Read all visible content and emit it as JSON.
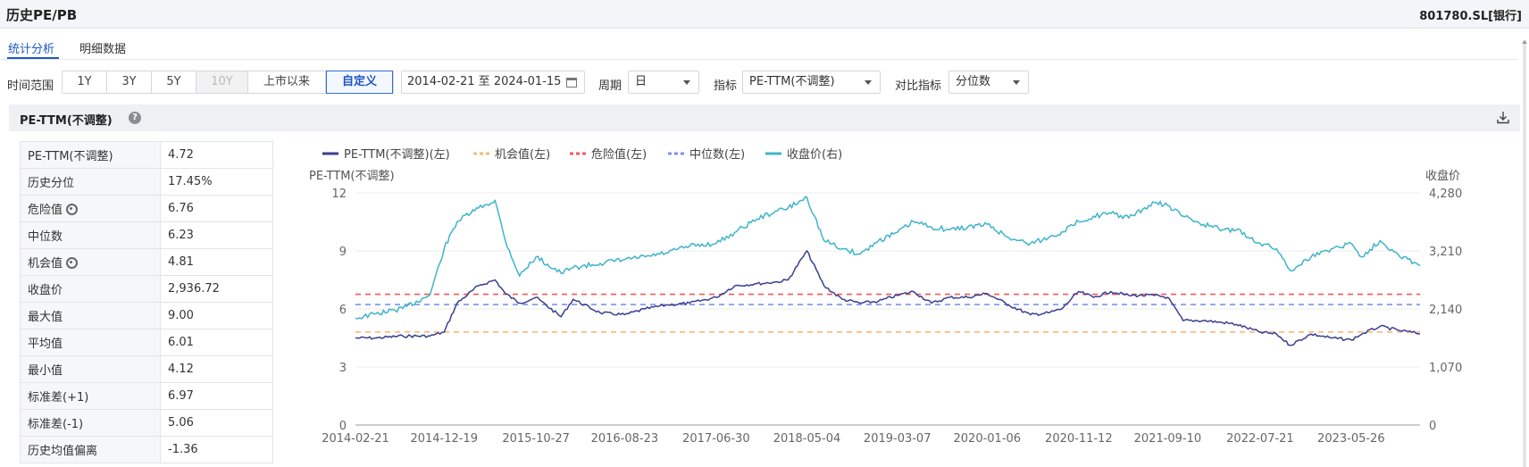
{
  "header": {
    "title": "历史PE/PB",
    "code": "801780.SL[银行]"
  },
  "tabs": [
    {
      "label": "统计分析",
      "active": true
    },
    {
      "label": "明细数据",
      "active": false
    }
  ],
  "filters": {
    "range_label": "时间范围",
    "range_buttons": [
      {
        "label": "1Y",
        "state": "normal"
      },
      {
        "label": "3Y",
        "state": "normal"
      },
      {
        "label": "5Y",
        "state": "normal"
      },
      {
        "label": "10Y",
        "state": "disabled"
      },
      {
        "label": "上市以来",
        "state": "normal"
      },
      {
        "label": "自定义",
        "state": "active"
      }
    ],
    "date_range": "2014-02-21 至 2024-01-15",
    "period_label": "周期",
    "period_value": "日",
    "indicator_label": "指标",
    "indicator_value": "PE-TTM(不调整)",
    "compare_label": "对比指标",
    "compare_value": "分位数"
  },
  "panel": {
    "title": "PE-TTM(不调整)"
  },
  "stats": [
    {
      "label": "PE-TTM(不调整)",
      "value": "4.72",
      "gear": false
    },
    {
      "label": "历史分位",
      "value": "17.45%",
      "gear": false
    },
    {
      "label": "危险值",
      "value": "6.76",
      "gear": true
    },
    {
      "label": "中位数",
      "value": "6.23",
      "gear": false
    },
    {
      "label": "机会值",
      "value": "4.81",
      "gear": true
    },
    {
      "label": "收盘价",
      "value": "2,936.72",
      "gear": false
    },
    {
      "label": "最大值",
      "value": "9.00",
      "gear": false
    },
    {
      "label": "平均值",
      "value": "6.01",
      "gear": false
    },
    {
      "label": "最小值",
      "value": "4.12",
      "gear": false
    },
    {
      "label": "标准差(+1)",
      "value": "6.97",
      "gear": false
    },
    {
      "label": "标准差(-1)",
      "value": "5.06",
      "gear": false
    },
    {
      "label": "历史均值偏离",
      "value": "-1.36",
      "gear": false
    }
  ],
  "chart_data": {
    "type": "line",
    "left_axis_label": "PE-TTM(不调整)",
    "right_axis_label": "收盘价",
    "left_ticks": [
      "0",
      "3",
      "6",
      "9",
      "12"
    ],
    "right_ticks": [
      "0",
      "1,070",
      "2,140",
      "3,210",
      "4,280"
    ],
    "ylim_left": [
      0,
      12
    ],
    "ylim_right": [
      0,
      4280
    ],
    "x_tick_labels": [
      "2014-02-21",
      "2014-12-19",
      "2015-10-27",
      "2016-08-23",
      "2017-06-30",
      "2018-05-04",
      "2019-03-07",
      "2020-01-06",
      "2020-11-12",
      "2021-09-10",
      "2022-07-21",
      "2023-05-26"
    ],
    "legend": [
      {
        "name": "PE-TTM(不调整)(左)",
        "color": "#3a3f8f",
        "style": "solid"
      },
      {
        "name": "机会值(左)",
        "color": "#f5b97a",
        "style": "dashed"
      },
      {
        "name": "危险值(左)",
        "color": "#ef5b5b",
        "style": "dashed"
      },
      {
        "name": "中位数(左)",
        "color": "#7d93f0",
        "style": "dashed"
      },
      {
        "name": "收盘价(右)",
        "color": "#3fb4c9",
        "style": "solid"
      }
    ],
    "reference_lines": {
      "机会值": 4.81,
      "危险值": 6.76,
      "中位数": 6.23
    },
    "series": [
      {
        "name": "PE-TTM(不调整)(左)",
        "axis": "left",
        "color": "#3a3f8f",
        "x": [
          "2014-02-21",
          "2014-05-01",
          "2014-08-01",
          "2014-11-01",
          "2014-12-19",
          "2015-02-01",
          "2015-04-15",
          "2015-06-10",
          "2015-07-15",
          "2015-09-01",
          "2015-10-27",
          "2016-01-20",
          "2016-03-01",
          "2016-06-01",
          "2016-08-23",
          "2016-11-01",
          "2017-01-10",
          "2017-04-01",
          "2017-06-30",
          "2017-09-01",
          "2017-11-15",
          "2018-01-24",
          "2018-03-01",
          "2018-05-04",
          "2018-07-01",
          "2018-09-01",
          "2018-11-01",
          "2019-01-02",
          "2019-03-07",
          "2019-05-01",
          "2019-07-01",
          "2019-09-01",
          "2019-11-01",
          "2020-01-06",
          "2020-03-20",
          "2020-06-01",
          "2020-08-01",
          "2020-09-15",
          "2020-11-12",
          "2021-01-01",
          "2021-03-01",
          "2021-05-01",
          "2021-07-28",
          "2021-09-10",
          "2021-11-01",
          "2022-01-10",
          "2022-03-15",
          "2022-05-01",
          "2022-07-21",
          "2022-09-15",
          "2022-10-31",
          "2023-01-10",
          "2023-03-20",
          "2023-05-26",
          "2023-07-01",
          "2023-09-01",
          "2023-11-01",
          "2024-01-15"
        ],
        "values": [
          4.5,
          4.5,
          4.6,
          4.6,
          4.8,
          6.3,
          7.2,
          7.5,
          6.8,
          6.3,
          6.6,
          5.6,
          6.5,
          5.8,
          5.7,
          6.0,
          6.2,
          6.3,
          6.6,
          7.2,
          7.3,
          7.4,
          7.5,
          9.0,
          7.2,
          6.5,
          6.3,
          6.4,
          6.7,
          6.9,
          6.3,
          6.6,
          6.6,
          6.8,
          6.2,
          5.7,
          5.8,
          6.0,
          6.9,
          6.6,
          6.9,
          6.7,
          6.7,
          6.6,
          5.4,
          5.4,
          5.3,
          5.2,
          4.8,
          4.7,
          4.12,
          4.7,
          4.5,
          4.4,
          4.7,
          5.1,
          4.9,
          4.72
        ]
      },
      {
        "name": "收盘价(右)",
        "axis": "right",
        "color": "#3fb4c9",
        "x": [
          "2014-02-21",
          "2014-05-01",
          "2014-08-01",
          "2014-11-01",
          "2014-12-19",
          "2015-02-01",
          "2015-04-15",
          "2015-06-10",
          "2015-07-15",
          "2015-09-01",
          "2015-10-27",
          "2016-01-20",
          "2016-03-01",
          "2016-06-01",
          "2016-08-23",
          "2016-11-01",
          "2017-01-10",
          "2017-04-01",
          "2017-06-30",
          "2017-09-01",
          "2017-11-15",
          "2018-01-24",
          "2018-03-01",
          "2018-05-04",
          "2018-07-01",
          "2018-09-01",
          "2018-11-01",
          "2019-01-02",
          "2019-03-07",
          "2019-05-01",
          "2019-07-01",
          "2019-09-01",
          "2019-11-01",
          "2020-01-06",
          "2020-03-20",
          "2020-06-01",
          "2020-08-01",
          "2020-09-15",
          "2020-11-12",
          "2021-01-01",
          "2021-03-01",
          "2021-05-01",
          "2021-07-28",
          "2021-09-10",
          "2021-11-01",
          "2022-01-10",
          "2022-03-15",
          "2022-05-01",
          "2022-07-21",
          "2022-09-15",
          "2022-10-31",
          "2023-01-10",
          "2023-03-20",
          "2023-05-26",
          "2023-07-01",
          "2023-09-01",
          "2023-11-01",
          "2024-01-15"
        ],
        "values": [
          1970,
          2050,
          2150,
          2400,
          3250,
          3750,
          4000,
          4140,
          3400,
          2750,
          3100,
          2800,
          2900,
          2980,
          3050,
          3100,
          3170,
          3300,
          3350,
          3550,
          3800,
          3950,
          4000,
          4200,
          3400,
          3250,
          3150,
          3400,
          3550,
          3750,
          3650,
          3600,
          3650,
          3700,
          3450,
          3350,
          3450,
          3560,
          3750,
          3850,
          3900,
          3820,
          4100,
          4050,
          3850,
          3700,
          3600,
          3600,
          3350,
          3250,
          2850,
          3100,
          3250,
          3350,
          3100,
          3400,
          3150,
          2936.72
        ]
      }
    ]
  }
}
